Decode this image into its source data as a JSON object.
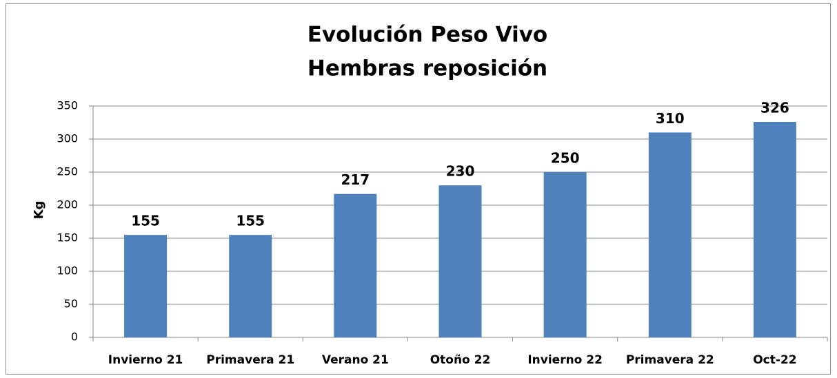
{
  "chart_data": {
    "type": "bar",
    "title": "Evolución Peso Vivo",
    "subtitle": "Hembras reposición",
    "y_label": "Kg",
    "categories": [
      "Invierno 21",
      "Primavera 21",
      "Verano 21",
      "Otoño 22",
      "Invierno 22",
      "Primavera 22",
      "Oct-22"
    ],
    "values": [
      155,
      155,
      217,
      230,
      250,
      310,
      326
    ],
    "color": "#4f81bd",
    "ylim": [
      0,
      350
    ],
    "yticks": [
      0,
      50,
      100,
      150,
      200,
      250,
      300,
      350
    ],
    "grid": true
  }
}
